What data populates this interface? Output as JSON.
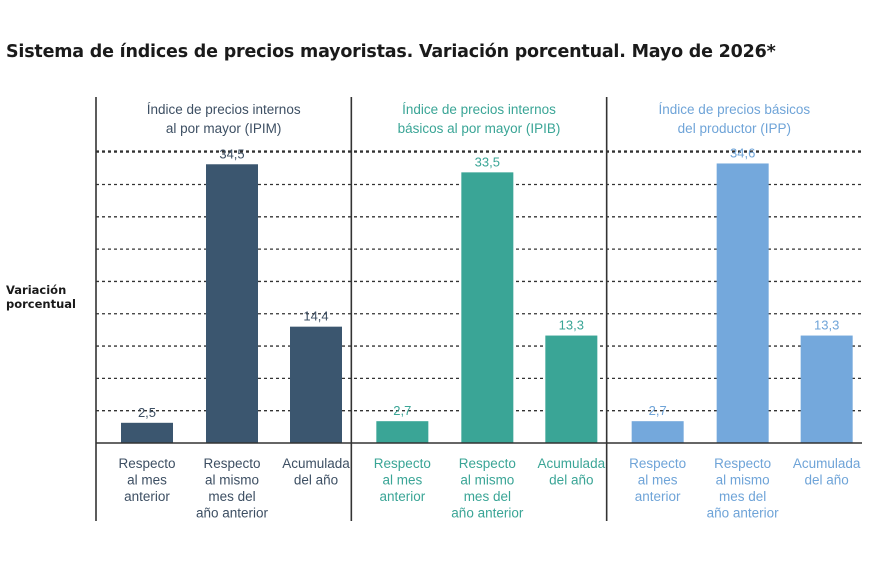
{
  "title": "Sistema de índices de precios mayoristas. Variación porcentual. Mayo de 2026*",
  "ylabel_lines": [
    "Variación",
    "porcentual"
  ],
  "colors": {
    "text": "#1a1a1a",
    "gridline": "#333333",
    "axis": "#333333"
  },
  "chart_data": {
    "type": "bar",
    "ylabel": "Variación porcentual",
    "ylim": [
      0,
      38
    ],
    "grid": true,
    "panels": [
      {
        "title_lines": [
          "Índice de precios internos",
          "al por mayor (IPIM)"
        ],
        "color": "#3b566f",
        "title_color": "#3d4f63",
        "label_color": "#3d4f63",
        "categories": [
          [
            "Respecto",
            "al mes",
            "anterior"
          ],
          [
            "Respecto",
            "al mismo",
            "mes del",
            "año anterior"
          ],
          [
            "Acumulada",
            "del año"
          ]
        ],
        "values": [
          2.5,
          34.5,
          14.4
        ],
        "value_labels": [
          "2,5",
          "34,5",
          "14,4"
        ]
      },
      {
        "title_lines": [
          "Índice de precios internos",
          "básicos al por mayor (IPIB)"
        ],
        "color": "#3aa596",
        "title_color": "#3aa596",
        "label_color": "#3aa596",
        "categories": [
          [
            "Respecto",
            "al mes",
            "anterior"
          ],
          [
            "Respecto",
            "al mismo",
            "mes del",
            "año anterior"
          ],
          [
            "Acumulada",
            "del año"
          ]
        ],
        "values": [
          2.7,
          33.5,
          13.3
        ],
        "value_labels": [
          "2,7",
          "33,5",
          "13,3"
        ]
      },
      {
        "title_lines": [
          "Índice de precios básicos",
          "del productor (IPP)"
        ],
        "color": "#74a8dc",
        "title_color": "#6fa4d8",
        "label_color": "#6fa4d8",
        "categories": [
          [
            "Respecto",
            "al mes",
            "anterior"
          ],
          [
            "Respecto",
            "al mismo",
            "mes del",
            "año anterior"
          ],
          [
            "Acumulada",
            "del año"
          ]
        ],
        "values": [
          2.7,
          34.6,
          13.3
        ],
        "value_labels": [
          "2,7",
          "34,6",
          "13,3"
        ]
      }
    ]
  }
}
